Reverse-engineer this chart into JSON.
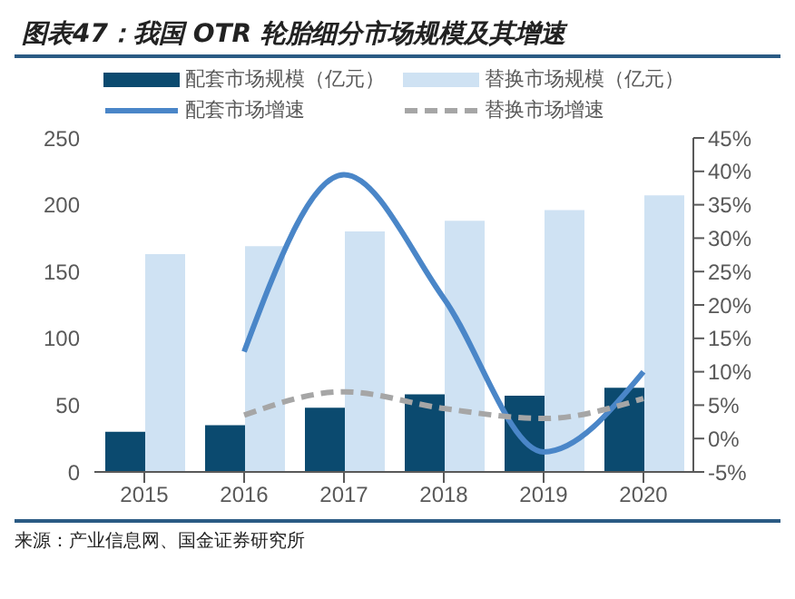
{
  "chart_data": {
    "type": "bar",
    "title": "图表47：我国 OTR 轮胎细分市场规模及其增速",
    "annotations": [
      "来源：产业信息网、国金证券研究所"
    ],
    "categories": [
      "2015",
      "2016",
      "2017",
      "2018",
      "2019",
      "2020"
    ],
    "series": [
      {
        "name": "配套市场规模（亿元）",
        "color": "#0b4a6f",
        "values": [
          30,
          35,
          48,
          58,
          57,
          63
        ]
      },
      {
        "name": "替换市场规模（亿元）",
        "color": "#cfe2f3",
        "values": [
          163,
          169,
          180,
          188,
          196,
          207
        ]
      },
      {
        "name": "配套市场增速",
        "type": "line",
        "axis": "y2",
        "color": "#4a86c8",
        "line_style": "solid",
        "values": [
          null,
          13,
          39.5,
          21,
          -2,
          10
        ]
      },
      {
        "name": "替换市场增速",
        "type": "line",
        "axis": "y2",
        "color": "#a6a6a6",
        "line_style": "dashed",
        "values": [
          null,
          3.5,
          7,
          4.5,
          3,
          6
        ]
      }
    ],
    "ylim": [
      0,
      250
    ],
    "yticks": [
      0,
      50,
      100,
      150,
      200,
      250
    ],
    "y2lim": [
      -5,
      45
    ],
    "y2ticks": [
      {
        "value": -5,
        "label": "-5%"
      },
      {
        "value": 0,
        "label": "0%"
      },
      {
        "value": 5,
        "label": "5%"
      },
      {
        "value": 10,
        "label": "10%"
      },
      {
        "value": 15,
        "label": "15%"
      },
      {
        "value": 20,
        "label": "20%"
      },
      {
        "value": 25,
        "label": "25%"
      },
      {
        "value": 30,
        "label": "30%"
      },
      {
        "value": 35,
        "label": "35%"
      },
      {
        "value": 40,
        "label": "40%"
      },
      {
        "value": 45,
        "label": "45%"
      }
    ],
    "grid": false,
    "legend": "top",
    "marker": "none"
  }
}
